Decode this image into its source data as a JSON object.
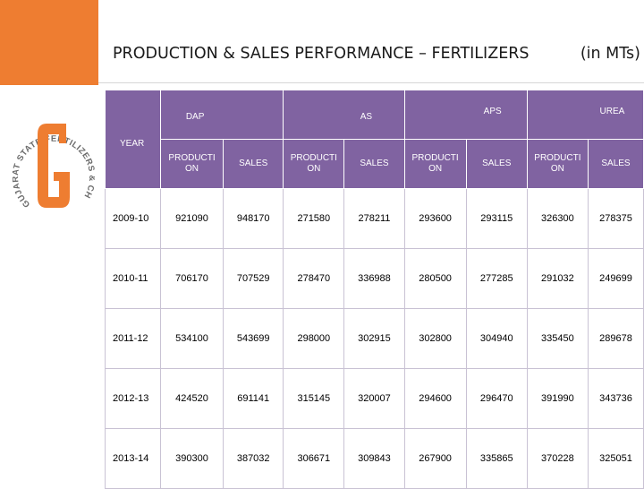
{
  "slide": {
    "title": "PRODUCTION & SALES PERFORMANCE – FERTILIZERS",
    "units": "(in MTs)"
  },
  "logo": {
    "ring_text": "GUJARAT STATE FERTILIZERS & CHEMICALS LIMITED",
    "letter": "G",
    "colors": {
      "orange": "#ee7d31",
      "gray": "#6b6b6b"
    }
  },
  "table": {
    "year_header": "YEAR",
    "groups": [
      "DAP",
      "AS",
      "APS",
      "UREA"
    ],
    "subheaders": [
      "PRODUCTI ON",
      "SALES"
    ],
    "rows": [
      {
        "year": "2009-10",
        "values": [
          "921090",
          "948170",
          "271580",
          "278211",
          "293600",
          "293115",
          "326300",
          "278375"
        ]
      },
      {
        "year": "2010-11",
        "values": [
          "706170",
          "707529",
          "278470",
          "336988",
          "280500",
          "277285",
          "291032",
          "249699"
        ]
      },
      {
        "year": "2011-12",
        "values": [
          "534100",
          "543699",
          "298000",
          "302915",
          "302800",
          "304940",
          "335450",
          "289678"
        ]
      },
      {
        "year": "2012-13",
        "values": [
          "424520",
          "691141",
          "315145",
          "320007",
          "294600",
          "296470",
          "391990",
          "343736"
        ]
      },
      {
        "year": "2013-14",
        "values": [
          "390300",
          "387032",
          "306671",
          "309843",
          "267900",
          "335865",
          "370228",
          "325051"
        ]
      }
    ]
  },
  "colors": {
    "accent_orange": "#ee7d31",
    "header_purple": "#8063a1"
  }
}
